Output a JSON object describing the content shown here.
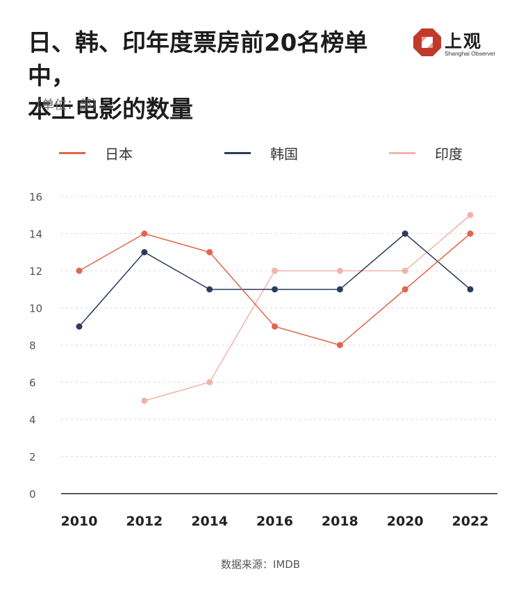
{
  "title_line1": "日、韩、印年度票房前20名榜单中，",
  "title_line2": "本土电影的数量",
  "unit_label": "（单位：部）",
  "source": "数据来源：IMDB",
  "logo": {
    "cn": "上观",
    "en": "Shanghai Observer",
    "color": "#c0392b"
  },
  "colors": {
    "japan": "#e0654a",
    "korea": "#2b3a5e",
    "india": "#f2b3a8",
    "grid": "#d8d8d8",
    "axis": "#222222"
  },
  "chart_data": {
    "type": "line",
    "x": [
      2010,
      2012,
      2014,
      2016,
      2018,
      2020,
      2022
    ],
    "ylim": [
      0,
      16
    ],
    "yticks": [
      0,
      2,
      4,
      6,
      8,
      10,
      12,
      14,
      16
    ],
    "grid": true,
    "legend_position": "top",
    "series": [
      {
        "name": "日本",
        "color": "#e0654a",
        "values": [
          12,
          14,
          13,
          9,
          8,
          11,
          14
        ]
      },
      {
        "name": "韩国",
        "color": "#2b3a5e",
        "values": [
          9,
          13,
          11,
          11,
          11,
          14,
          11
        ]
      },
      {
        "name": "印度",
        "color": "#f2b3a8",
        "values": [
          null,
          5,
          6,
          12,
          12,
          12,
          15
        ]
      }
    ]
  }
}
